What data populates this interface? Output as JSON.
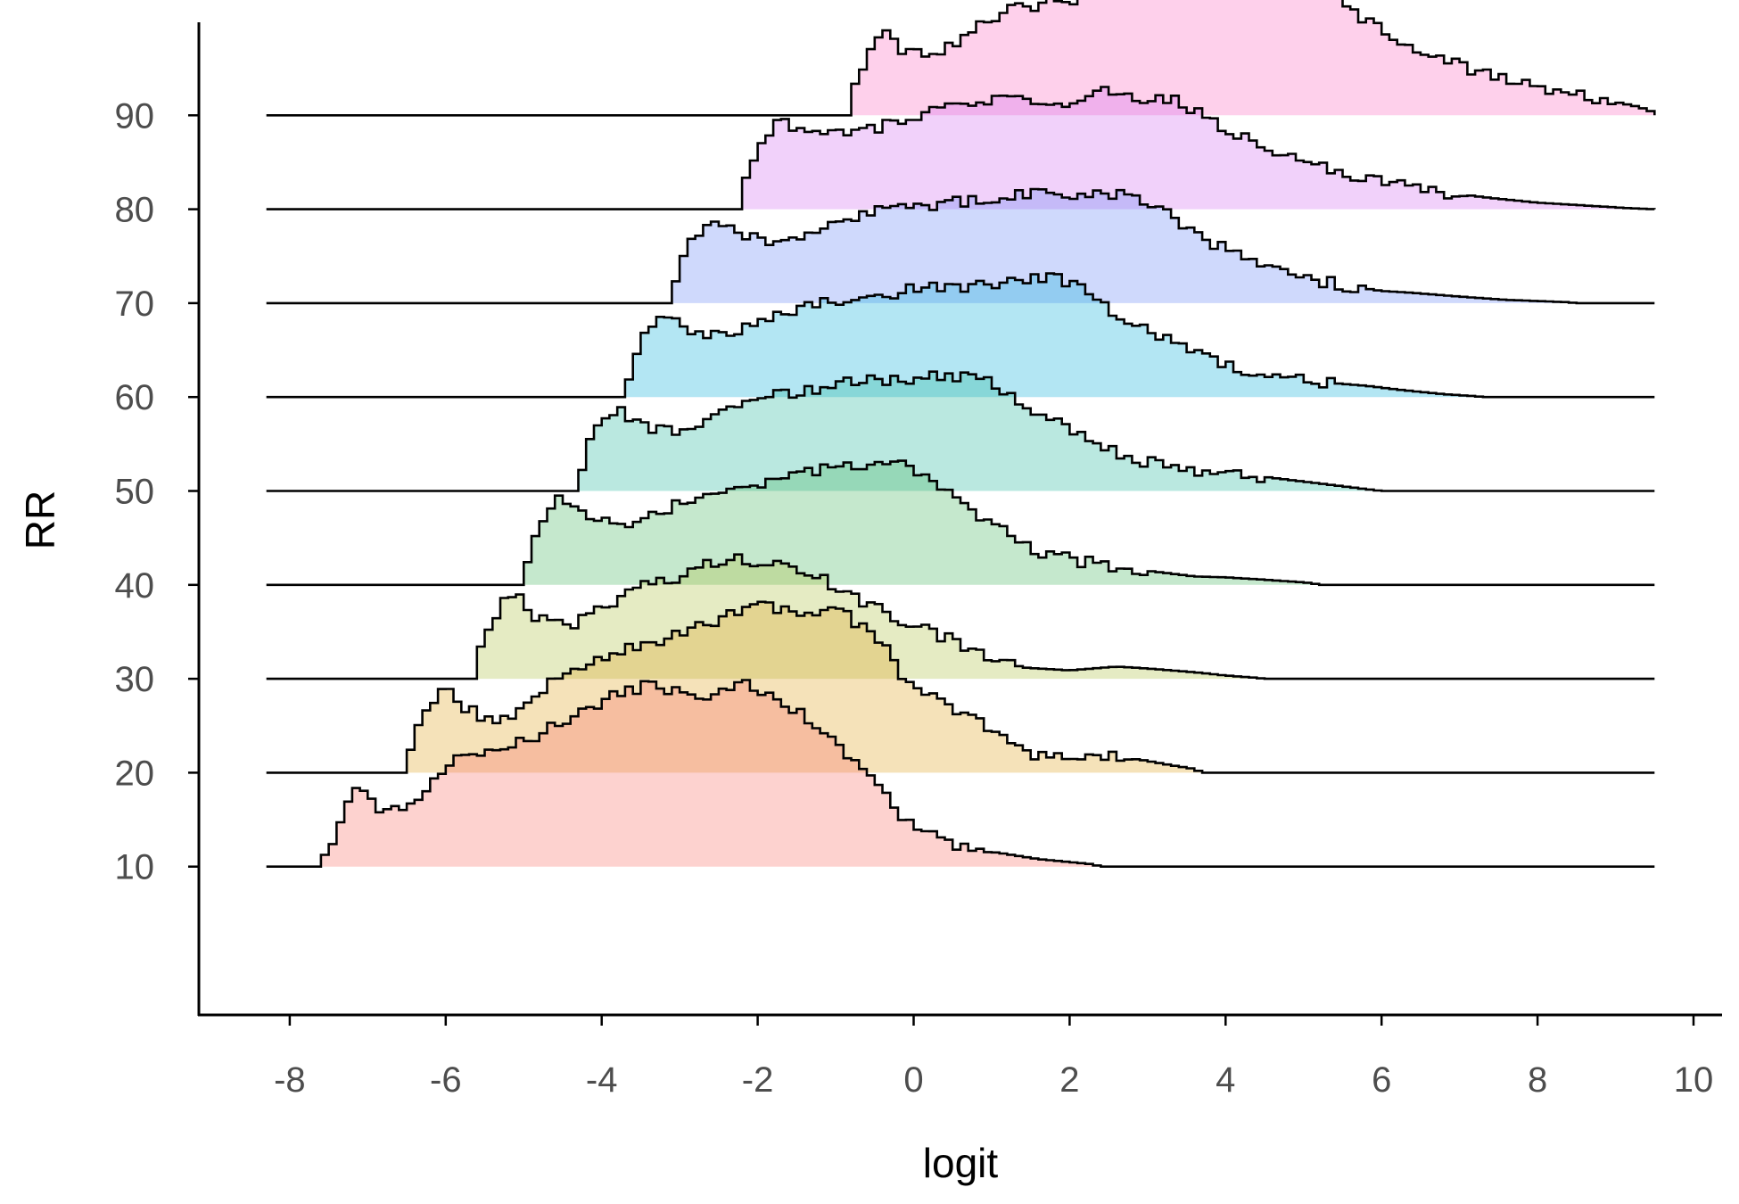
{
  "chart_data": {
    "type": "ridgeline-histogram",
    "xlabel": "logit",
    "ylabel": "RR",
    "xlim": [
      -9.2,
      10.4
    ],
    "ylim": [
      4,
      102
    ],
    "x_ticks": [
      -8,
      -6,
      -4,
      -2,
      0,
      2,
      4,
      6,
      8,
      10
    ],
    "y_ticks": [
      10,
      20,
      30,
      40,
      50,
      60,
      70,
      80,
      90
    ],
    "bin_width": 0.1,
    "line_range": [
      -8.3,
      9.5
    ],
    "grid": false,
    "legend": "none",
    "ridge_scale": 1.0,
    "ridges": [
      {
        "rr": 10,
        "color": "#F8766D",
        "start": -7.6,
        "profile": [
          [
            -7.6,
            0.4
          ],
          [
            -7.5,
            2.1
          ],
          [
            -7.3,
            5.8
          ],
          [
            -7.2,
            8.6
          ],
          [
            -6.8,
            5.9
          ],
          [
            -6.5,
            6.3
          ],
          [
            -6.3,
            8.0
          ],
          [
            -6.0,
            10.8
          ],
          [
            -5.4,
            12.8
          ],
          [
            -4.8,
            14.0
          ],
          [
            -4.4,
            15.8
          ],
          [
            -4.0,
            17.6
          ],
          [
            -3.5,
            19.0
          ],
          [
            -3.3,
            19.5
          ],
          [
            -2.9,
            18.0
          ],
          [
            -2.5,
            18.4
          ],
          [
            -2.2,
            19.5
          ],
          [
            -1.8,
            17.8
          ],
          [
            -1.3,
            15.6
          ],
          [
            -0.9,
            12.2
          ],
          [
            -0.5,
            9.6
          ],
          [
            -0.3,
            6.6
          ],
          [
            0.0,
            4.1
          ],
          [
            0.4,
            2.6
          ],
          [
            1.0,
            1.6
          ],
          [
            1.6,
            0.8
          ],
          [
            2.3,
            0.25
          ],
          [
            2.4,
            0.0
          ]
        ]
      },
      {
        "rr": 20,
        "color": "#E1A629",
        "start": -6.5,
        "profile": [
          [
            -6.5,
            0.6
          ],
          [
            -6.4,
            3.6
          ],
          [
            -6.2,
            7.6
          ],
          [
            -6.0,
            8.8
          ],
          [
            -5.8,
            7.0
          ],
          [
            -5.4,
            5.5
          ],
          [
            -5.0,
            6.9
          ],
          [
            -4.6,
            9.8
          ],
          [
            -4.0,
            12.4
          ],
          [
            -3.3,
            13.8
          ],
          [
            -2.8,
            15.4
          ],
          [
            -2.4,
            16.8
          ],
          [
            -2.0,
            17.8
          ],
          [
            -1.5,
            17.0
          ],
          [
            -1.1,
            17.6
          ],
          [
            -0.8,
            16.4
          ],
          [
            -0.4,
            14.2
          ],
          [
            -0.2,
            10.9
          ],
          [
            0.2,
            8.5
          ],
          [
            0.6,
            6.6
          ],
          [
            0.9,
            5.0
          ],
          [
            1.3,
            3.4
          ],
          [
            1.6,
            1.8
          ],
          [
            2.0,
            1.4
          ],
          [
            2.3,
            1.8
          ],
          [
            2.9,
            1.4
          ],
          [
            3.3,
            0.8
          ],
          [
            3.6,
            0.4
          ],
          [
            3.7,
            0.0
          ]
        ]
      },
      {
        "rr": 30,
        "color": "#B0C24A",
        "start": -5.6,
        "profile": [
          [
            -5.6,
            1.0
          ],
          [
            -5.5,
            4.6
          ],
          [
            -5.3,
            7.9
          ],
          [
            -5.1,
            9.4
          ],
          [
            -4.9,
            6.9
          ],
          [
            -4.4,
            5.7
          ],
          [
            -4.0,
            7.5
          ],
          [
            -3.6,
            9.5
          ],
          [
            -3.0,
            11.0
          ],
          [
            -2.6,
            12.3
          ],
          [
            -2.2,
            12.8
          ],
          [
            -1.8,
            12.3
          ],
          [
            -1.3,
            11.0
          ],
          [
            -0.8,
            9.0
          ],
          [
            -0.5,
            7.6
          ],
          [
            -0.2,
            6.2
          ],
          [
            0.2,
            5.2
          ],
          [
            0.6,
            3.6
          ],
          [
            1.0,
            2.4
          ],
          [
            1.4,
            1.2
          ],
          [
            2.0,
            0.9
          ],
          [
            2.6,
            1.3
          ],
          [
            3.0,
            1.1
          ],
          [
            3.6,
            0.7
          ],
          [
            4.0,
            0.35
          ],
          [
            4.4,
            0.1
          ],
          [
            4.5,
            0.0
          ]
        ]
      },
      {
        "rr": 40,
        "color": "#4FB967",
        "start": -5.0,
        "profile": [
          [
            -5.0,
            0.8
          ],
          [
            -4.9,
            3.8
          ],
          [
            -4.7,
            7.9
          ],
          [
            -4.5,
            9.5
          ],
          [
            -4.2,
            7.8
          ],
          [
            -3.8,
            6.4
          ],
          [
            -3.5,
            7.2
          ],
          [
            -3.1,
            8.3
          ],
          [
            -2.6,
            9.6
          ],
          [
            -2.0,
            10.9
          ],
          [
            -1.4,
            11.8
          ],
          [
            -0.9,
            12.6
          ],
          [
            -0.5,
            12.3
          ],
          [
            -0.3,
            12.9
          ],
          [
            -0.1,
            13.2
          ],
          [
            0.1,
            11.6
          ],
          [
            0.4,
            10.1
          ],
          [
            0.8,
            7.6
          ],
          [
            1.2,
            5.4
          ],
          [
            1.6,
            3.6
          ],
          [
            2.0,
            2.7
          ],
          [
            2.5,
            2.0
          ],
          [
            3.2,
            1.3
          ],
          [
            3.6,
            0.9
          ],
          [
            4.0,
            0.8
          ],
          [
            4.6,
            0.5
          ],
          [
            5.1,
            0.2
          ],
          [
            5.2,
            0.0
          ]
        ]
      },
      {
        "rr": 50,
        "color": "#2FB9A1",
        "start": -4.3,
        "profile": [
          [
            -4.3,
            0.9
          ],
          [
            -4.2,
            4.1
          ],
          [
            -4.0,
            7.7
          ],
          [
            -3.8,
            8.8
          ],
          [
            -3.5,
            6.9
          ],
          [
            -3.0,
            6.4
          ],
          [
            -2.6,
            8.0
          ],
          [
            -2.3,
            9.4
          ],
          [
            -1.7,
            10.2
          ],
          [
            -1.1,
            11.2
          ],
          [
            -0.5,
            11.8
          ],
          [
            0.0,
            12.0
          ],
          [
            0.3,
            12.2
          ],
          [
            0.6,
            12.3
          ],
          [
            1.0,
            11.6
          ],
          [
            1.4,
            9.3
          ],
          [
            1.8,
            7.3
          ],
          [
            2.2,
            5.6
          ],
          [
            2.6,
            4.2
          ],
          [
            3.0,
            3.1
          ],
          [
            3.6,
            2.2
          ],
          [
            4.0,
            1.8
          ],
          [
            4.4,
            1.6
          ],
          [
            5.0,
            1.0
          ],
          [
            5.6,
            0.4
          ],
          [
            5.9,
            0.1
          ],
          [
            6.0,
            0.0
          ]
        ]
      },
      {
        "rr": 60,
        "color": "#18B2DC",
        "start": -3.7,
        "profile": [
          [
            -3.7,
            0.9
          ],
          [
            -3.6,
            3.7
          ],
          [
            -3.4,
            7.2
          ],
          [
            -3.2,
            9.1
          ],
          [
            -2.8,
            6.7
          ],
          [
            -2.4,
            6.4
          ],
          [
            -2.1,
            8.0
          ],
          [
            -1.6,
            9.3
          ],
          [
            -1.0,
            10.3
          ],
          [
            -0.4,
            11.0
          ],
          [
            0.1,
            11.5
          ],
          [
            0.6,
            11.7
          ],
          [
            1.1,
            11.9
          ],
          [
            1.5,
            12.4
          ],
          [
            1.8,
            12.7
          ],
          [
            2.2,
            11.2
          ],
          [
            2.6,
            9.0
          ],
          [
            3.0,
            7.1
          ],
          [
            3.4,
            5.3
          ],
          [
            3.8,
            3.9
          ],
          [
            4.2,
            3.1
          ],
          [
            4.6,
            2.3
          ],
          [
            5.2,
            1.6
          ],
          [
            5.8,
            1.2
          ],
          [
            6.2,
            0.8
          ],
          [
            6.8,
            0.3
          ],
          [
            7.2,
            0.1
          ],
          [
            7.3,
            0.0
          ]
        ]
      },
      {
        "rr": 70,
        "color": "#6C8BF7",
        "start": -3.1,
        "profile": [
          [
            -3.1,
            1.0
          ],
          [
            -3.0,
            4.0
          ],
          [
            -2.8,
            7.6
          ],
          [
            -2.5,
            8.7
          ],
          [
            -2.0,
            6.7
          ],
          [
            -1.6,
            6.5
          ],
          [
            -1.1,
            8.4
          ],
          [
            -0.7,
            9.5
          ],
          [
            -0.1,
            10.1
          ],
          [
            0.5,
            10.8
          ],
          [
            1.0,
            11.0
          ],
          [
            1.4,
            11.6
          ],
          [
            1.8,
            11.9
          ],
          [
            2.3,
            11.5
          ],
          [
            2.6,
            11.8
          ],
          [
            3.1,
            10.3
          ],
          [
            3.5,
            8.0
          ],
          [
            3.9,
            6.1
          ],
          [
            4.3,
            4.5
          ],
          [
            4.7,
            3.3
          ],
          [
            5.2,
            2.4
          ],
          [
            5.6,
            1.8
          ],
          [
            6.0,
            1.3
          ],
          [
            6.4,
            1.1
          ],
          [
            7.0,
            0.7
          ],
          [
            7.6,
            0.35
          ],
          [
            8.4,
            0.1
          ],
          [
            8.5,
            0.0
          ]
        ]
      },
      {
        "rr": 80,
        "color": "#D672F1",
        "start": -2.2,
        "profile": [
          [
            -2.2,
            1.2
          ],
          [
            -2.1,
            4.9
          ],
          [
            -1.9,
            8.2
          ],
          [
            -1.7,
            9.3
          ],
          [
            -1.2,
            8.0
          ],
          [
            -0.8,
            7.9
          ],
          [
            -0.3,
            9.2
          ],
          [
            0.3,
            10.4
          ],
          [
            0.9,
            11.3
          ],
          [
            1.4,
            11.9
          ],
          [
            2.0,
            11.4
          ],
          [
            2.4,
            12.6
          ],
          [
            2.9,
            11.6
          ],
          [
            3.3,
            12.0
          ],
          [
            3.7,
            10.1
          ],
          [
            4.1,
            8.3
          ],
          [
            4.5,
            6.6
          ],
          [
            4.9,
            5.2
          ],
          [
            5.3,
            4.2
          ],
          [
            5.8,
            3.3
          ],
          [
            6.3,
            2.4
          ],
          [
            6.8,
            1.8
          ],
          [
            7.4,
            1.2
          ],
          [
            8.0,
            0.7
          ],
          [
            8.6,
            0.4
          ],
          [
            9.2,
            0.1
          ],
          [
            9.5,
            0.0
          ]
        ]
      },
      {
        "rr": 90,
        "color": "#FC71C3",
        "start": -0.8,
        "profile": [
          [
            -0.8,
            1.3
          ],
          [
            -0.7,
            4.6
          ],
          [
            -0.5,
            7.4
          ],
          [
            -0.3,
            8.9
          ],
          [
            -0.1,
            6.4
          ],
          [
            0.3,
            6.8
          ],
          [
            0.7,
            8.6
          ],
          [
            1.1,
            10.8
          ],
          [
            1.6,
            11.8
          ],
          [
            2.1,
            12.5
          ],
          [
            2.6,
            13.4
          ],
          [
            3.0,
            14.3
          ],
          [
            3.5,
            14.8
          ],
          [
            4.0,
            14.2
          ],
          [
            4.4,
            15.3
          ],
          [
            4.8,
            15.6
          ],
          [
            5.1,
            14.7
          ],
          [
            5.4,
            12.5
          ],
          [
            5.8,
            10.2
          ],
          [
            6.2,
            8.3
          ],
          [
            6.6,
            6.7
          ],
          [
            7.0,
            5.3
          ],
          [
            7.4,
            4.1
          ],
          [
            7.9,
            3.1
          ],
          [
            8.4,
            2.3
          ],
          [
            8.9,
            1.6
          ],
          [
            9.3,
            0.9
          ],
          [
            9.5,
            0.3
          ]
        ]
      }
    ]
  }
}
